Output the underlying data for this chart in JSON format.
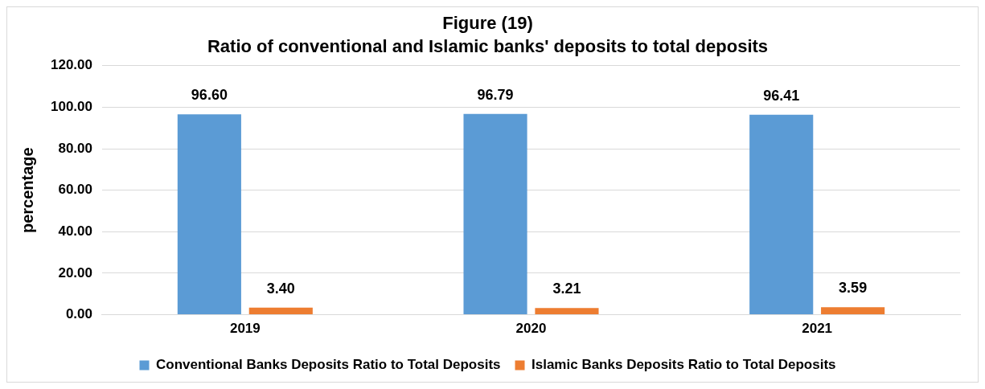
{
  "chart_data": {
    "type": "bar",
    "title": "Figure (19)",
    "subtitle": "Ratio of conventional and Islamic banks' deposits to total deposits",
    "ylabel": "percentage",
    "categories": [
      "2019",
      "2020",
      "2021"
    ],
    "series": [
      {
        "name": "Conventional Banks Deposits Ratio to Total Deposits",
        "color": "#5b9bd5",
        "values": [
          96.6,
          96.79,
          96.41
        ],
        "value_labels": [
          "96.60",
          "96.79",
          "96.41"
        ]
      },
      {
        "name": "Islamic Banks Deposits Ratio to Total Deposits",
        "color": "#ed7d31",
        "values": [
          3.4,
          3.21,
          3.59
        ],
        "value_labels": [
          "3.40",
          "3.21",
          "3.59"
        ]
      }
    ],
    "ylim": [
      0,
      120
    ],
    "yticks": [
      {
        "value": 0,
        "label": "0.00"
      },
      {
        "value": 20,
        "label": "20.00"
      },
      {
        "value": 40,
        "label": "40.00"
      },
      {
        "value": 60,
        "label": "60.00"
      },
      {
        "value": 80,
        "label": "80.00"
      },
      {
        "value": 100,
        "label": "100.00"
      },
      {
        "value": 120,
        "label": "120.00"
      }
    ],
    "grid": "y",
    "legend": "bottom"
  }
}
